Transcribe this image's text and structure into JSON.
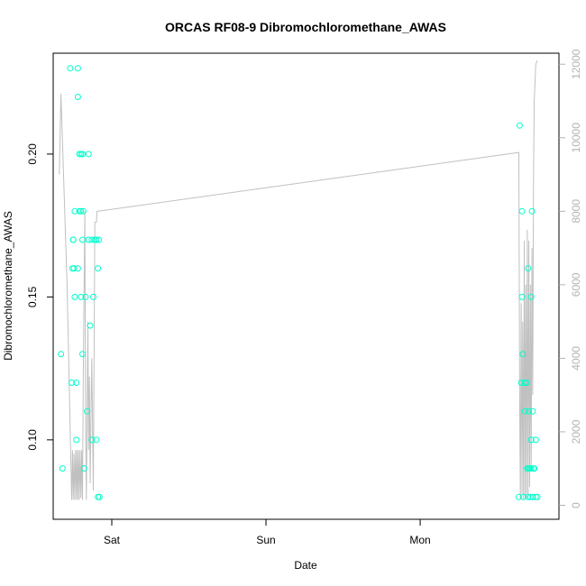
{
  "chart_data": {
    "type": "scatter",
    "title": "ORCAS RF08-9 Dibromochloromethane_AWAS",
    "xlabel": "Date",
    "ylabel": "Dibromochloromethane_AWAS",
    "x_unit": "days",
    "xlim": [
      -0.38,
      2.9
    ],
    "ylim": [
      0.0722,
      0.2353
    ],
    "y_ticks": [
      0.1,
      0.15,
      0.2
    ],
    "y_tick_labels": [
      "0.10",
      "0.15",
      "0.20"
    ],
    "x_ticks": [
      0,
      1,
      2
    ],
    "x_tick_labels": [
      "Sat",
      "Sun",
      "Mon"
    ],
    "secondary_axis": {
      "side": "right",
      "ylim": [
        -380,
        12300
      ],
      "ticks": [
        0,
        2000,
        4000,
        6000,
        8000,
        10000,
        12000
      ],
      "tick_labels": [
        "0",
        "2000",
        "4000",
        "6000",
        "8000",
        "10000",
        "12000"
      ],
      "color": "#b3b3b3"
    },
    "colors": {
      "points": "#00ffcc",
      "line": "#c0c0c0"
    },
    "grid": false,
    "series": [
      {
        "kind": "points",
        "x": [
          -0.33,
          -0.32,
          -0.27,
          -0.26,
          -0.255,
          -0.25,
          -0.25,
          -0.245,
          -0.24,
          -0.24,
          -0.23,
          -0.23,
          -0.22,
          -0.22,
          -0.22,
          -0.21,
          -0.21,
          -0.2,
          -0.2,
          -0.2,
          -0.19,
          -0.19,
          -0.19,
          -0.185,
          -0.18,
          -0.17,
          -0.16,
          -0.15,
          -0.15,
          -0.14,
          -0.13,
          -0.13,
          -0.12,
          -0.11,
          -0.1,
          -0.1,
          -0.09,
          -0.09,
          -0.085,
          -0.08,
          2.64,
          2.645,
          2.655,
          2.66,
          2.66,
          2.665,
          2.67,
          2.68,
          2.68,
          2.69,
          2.695,
          2.7,
          2.7,
          2.7,
          2.705,
          2.71,
          2.715,
          2.72,
          2.72,
          2.72,
          2.725,
          2.73,
          2.73,
          2.735,
          2.74,
          2.75,
          2.75,
          2.76
        ],
        "y": [
          0.13,
          0.09,
          0.23,
          0.12,
          0.16,
          0.17,
          0.17,
          0.16,
          0.15,
          0.18,
          0.1,
          0.12,
          0.16,
          0.22,
          0.23,
          0.2,
          0.18,
          0.2,
          0.15,
          0.18,
          0.17,
          0.2,
          0.13,
          0.18,
          0.09,
          0.15,
          0.11,
          0.17,
          0.2,
          0.14,
          0.1,
          0.17,
          0.15,
          0.17,
          0.1,
          0.17,
          0.16,
          0.08,
          0.17,
          0.08,
          0.08,
          0.21,
          0.12,
          0.15,
          0.18,
          0.13,
          0.08,
          0.11,
          0.12,
          0.12,
          0.09,
          0.16,
          0.09,
          0.08,
          0.11,
          0.09,
          0.08,
          0.1,
          0.09,
          0.15,
          0.18,
          0.11,
          0.08,
          0.09,
          0.09,
          0.08,
          0.1,
          0.08
        ]
      },
      {
        "kind": "line",
        "axis": "right",
        "x": [
          -0.34,
          -0.33,
          -0.29,
          -0.26,
          -0.255,
          -0.25,
          -0.245,
          -0.24,
          -0.235,
          -0.23,
          -0.225,
          -0.22,
          -0.215,
          -0.21,
          -0.205,
          -0.2,
          -0.195,
          -0.19,
          -0.185,
          -0.175,
          -0.17,
          -0.165,
          -0.155,
          -0.15,
          -0.145,
          -0.14,
          -0.13,
          -0.12,
          -0.11,
          -0.1,
          -0.095,
          -0.09,
          2.64,
          2.645,
          2.65,
          2.655,
          2.66,
          2.665,
          2.67,
          2.675,
          2.68,
          2.685,
          2.69,
          2.695,
          2.7,
          2.705,
          2.71,
          2.715,
          2.72,
          2.725,
          2.73,
          2.735,
          2.74,
          2.75,
          2.76
        ],
        "y": [
          9000,
          11200,
          6000,
          150,
          1500,
          150,
          1400,
          150,
          1500,
          150,
          1500,
          150,
          1500,
          150,
          1500,
          200,
          1500,
          150,
          3600,
          8000,
          2500,
          150,
          5000,
          1500,
          3500,
          600,
          4000,
          400,
          7700,
          7700,
          8000,
          8000,
          9600,
          3000,
          150,
          5500,
          300,
          5000,
          150,
          7200,
          200,
          6000,
          150,
          7500,
          300,
          7200,
          500,
          6000,
          1000,
          7000,
          3000,
          9000,
          11000,
          12000,
          12100
        ]
      }
    ]
  }
}
